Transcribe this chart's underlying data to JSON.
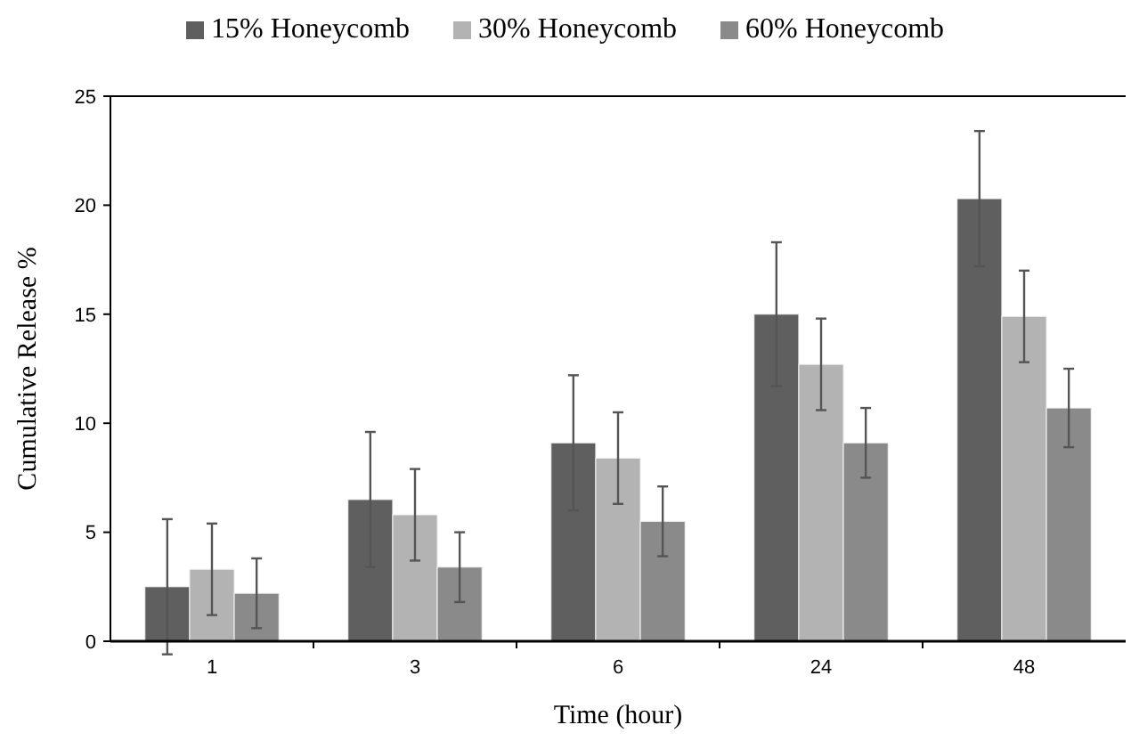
{
  "chart_data": {
    "type": "bar",
    "xlabel": "Time (hour)",
    "ylabel": "Cumulative Release  %",
    "categories": [
      "1",
      "3",
      "6",
      "24",
      "48"
    ],
    "series": [
      {
        "name": "15% Honeycomb",
        "color": "#5f5f5f",
        "values": [
          2.5,
          6.5,
          9.1,
          15.0,
          20.3
        ],
        "errors": [
          3.1,
          3.1,
          3.1,
          3.3,
          3.1
        ]
      },
      {
        "name": "30% Honeycomb",
        "color": "#b3b3b3",
        "values": [
          3.3,
          5.8,
          8.4,
          12.7,
          14.9
        ],
        "errors": [
          2.1,
          2.1,
          2.1,
          2.1,
          2.1
        ]
      },
      {
        "name": "60% Honeycomb",
        "color": "#8a8a8a",
        "values": [
          2.2,
          3.4,
          5.5,
          9.1,
          10.7
        ],
        "errors": [
          1.6,
          1.6,
          1.6,
          1.6,
          1.8
        ]
      }
    ],
    "ylim": [
      0,
      25
    ],
    "yticks": [
      0,
      5,
      10,
      15,
      20,
      25
    ],
    "grid": false,
    "legend": "top"
  }
}
